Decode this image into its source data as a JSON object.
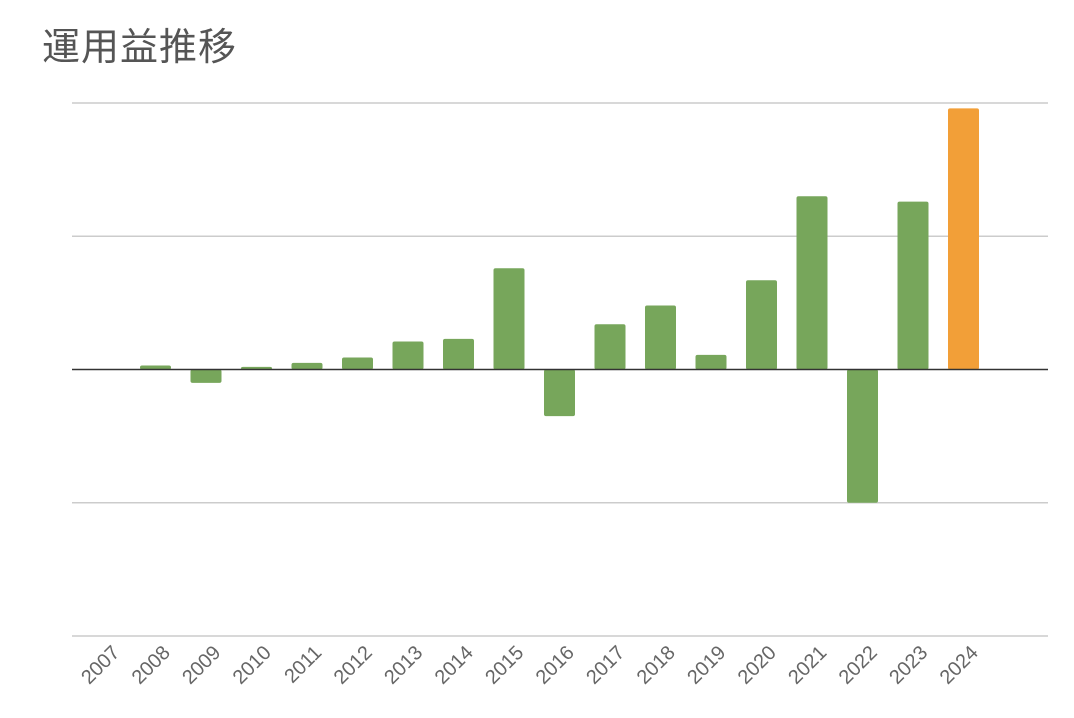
{
  "chart_data": {
    "type": "bar",
    "title": "運用益推移",
    "categories": [
      "2007",
      "2008",
      "2009",
      "2010",
      "2011",
      "2012",
      "2013",
      "2014",
      "2015",
      "2016",
      "2017",
      "2018",
      "2019",
      "2020",
      "2021",
      "2022",
      "2023",
      "2024"
    ],
    "values": [
      0,
      0.3,
      -1.0,
      0.2,
      0.5,
      0.9,
      2.1,
      2.3,
      7.6,
      -3.5,
      3.4,
      4.8,
      1.1,
      6.7,
      13.0,
      -10.0,
      12.6,
      19.6
    ],
    "highlight_index": 17,
    "ylim": [
      -20,
      20
    ],
    "yticks": [
      -20,
      -10,
      0,
      10,
      20
    ],
    "xlabel": "",
    "ylabel": "",
    "grid": true,
    "colors": {
      "bar": "#77a65b",
      "highlight": "#f29f38",
      "grid": "#cccccc",
      "zero_line": "#333333",
      "text": "#666666"
    }
  }
}
